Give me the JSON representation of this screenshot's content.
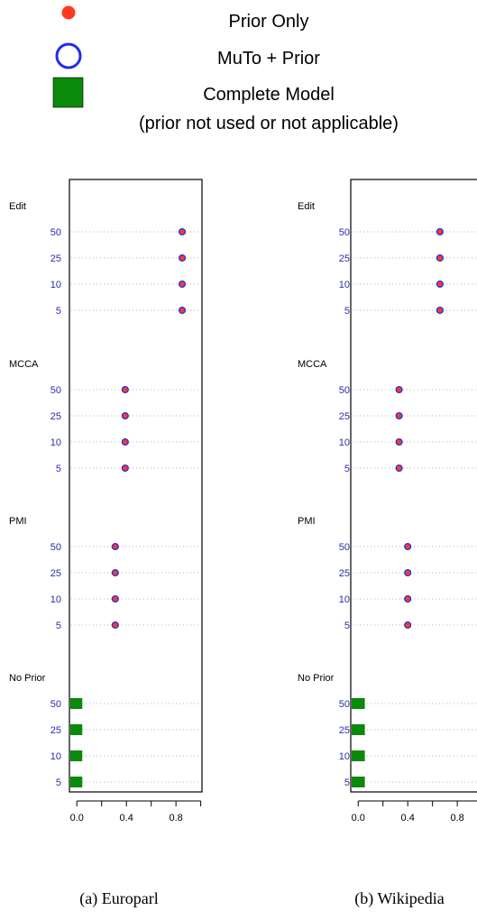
{
  "legend": {
    "items": [
      {
        "label": "Prior Only",
        "marker": "red-dot",
        "color": "#ff3b1f"
      },
      {
        "label": "MuTo + Prior",
        "marker": "blue-open-circle",
        "color": "#1f2fe6"
      },
      {
        "label": "Complete Model",
        "sublabel": "(prior not used or not applicable)",
        "marker": "green-square",
        "color": "#0a8a0a"
      }
    ]
  },
  "colors": {
    "row_label": "#2b2bb0",
    "group_label": "#000000",
    "grid": "#9a9a9a",
    "prior_only_fill": "#ff3b1f",
    "muto_stroke": "#1f2fe6",
    "complete_fill": "#0a8a0a"
  },
  "chart_data": [
    {
      "type": "scatter",
      "caption": "(a) Europarl",
      "xticks": [
        "0.0",
        "0.4",
        "0.8"
      ],
      "xlim": [
        -0.06,
        1.01
      ],
      "groups": [
        {
          "name": "Edit",
          "rows": [
            {
              "label": "50",
              "value": 0.85,
              "marker": "prior+muto"
            },
            {
              "label": "25",
              "value": 0.85,
              "marker": "prior+muto"
            },
            {
              "label": "10",
              "value": 0.85,
              "marker": "prior+muto"
            },
            {
              "label": "5",
              "value": 0.85,
              "marker": "prior+muto"
            }
          ]
        },
        {
          "name": "MCCA",
          "rows": [
            {
              "label": "50",
              "value": 0.39,
              "marker": "prior+muto"
            },
            {
              "label": "25",
              "value": 0.39,
              "marker": "prior+muto"
            },
            {
              "label": "10",
              "value": 0.39,
              "marker": "prior+muto"
            },
            {
              "label": "5",
              "value": 0.39,
              "marker": "prior+muto"
            }
          ]
        },
        {
          "name": "PMI",
          "rows": [
            {
              "label": "50",
              "value": 0.31,
              "marker": "prior+muto"
            },
            {
              "label": "25",
              "value": 0.31,
              "marker": "prior+muto"
            },
            {
              "label": "10",
              "value": 0.31,
              "marker": "prior+muto"
            },
            {
              "label": "5",
              "value": 0.31,
              "marker": "prior+muto"
            }
          ]
        },
        {
          "name": "No Prior",
          "rows": [
            {
              "label": "50",
              "value": 0.0,
              "marker": "complete"
            },
            {
              "label": "25",
              "value": 0.0,
              "marker": "complete"
            },
            {
              "label": "10",
              "value": 0.0,
              "marker": "complete"
            },
            {
              "label": "5",
              "value": 0.0,
              "marker": "complete"
            }
          ]
        }
      ]
    },
    {
      "type": "scatter",
      "caption": "(b) Wikipedia",
      "xticks": [
        "0.0",
        "0.4",
        "0.8"
      ],
      "xlim": [
        -0.06,
        1.01
      ],
      "groups": [
        {
          "name": "Edit",
          "rows": [
            {
              "label": "50",
              "value": 0.66,
              "marker": "prior+muto"
            },
            {
              "label": "25",
              "value": 0.66,
              "marker": "prior+muto"
            },
            {
              "label": "10",
              "value": 0.66,
              "marker": "prior+muto"
            },
            {
              "label": "5",
              "value": 0.66,
              "marker": "prior+muto"
            }
          ]
        },
        {
          "name": "MCCA",
          "rows": [
            {
              "label": "50",
              "value": 0.33,
              "marker": "prior+muto"
            },
            {
              "label": "25",
              "value": 0.33,
              "marker": "prior+muto"
            },
            {
              "label": "10",
              "value": 0.33,
              "marker": "prior+muto"
            },
            {
              "label": "5",
              "value": 0.33,
              "marker": "prior+muto"
            }
          ]
        },
        {
          "name": "PMI",
          "rows": [
            {
              "label": "50",
              "value": 0.4,
              "marker": "prior+muto"
            },
            {
              "label": "25",
              "value": 0.4,
              "marker": "prior+muto"
            },
            {
              "label": "10",
              "value": 0.4,
              "marker": "prior+muto"
            },
            {
              "label": "5",
              "value": 0.4,
              "marker": "prior+muto"
            }
          ]
        },
        {
          "name": "No Prior",
          "rows": [
            {
              "label": "50",
              "value": 0.01,
              "marker": "complete"
            },
            {
              "label": "25",
              "value": 0.01,
              "marker": "complete"
            },
            {
              "label": "10",
              "value": 0.01,
              "marker": "complete"
            },
            {
              "label": "5",
              "value": 0.01,
              "marker": "complete"
            }
          ]
        }
      ]
    }
  ]
}
